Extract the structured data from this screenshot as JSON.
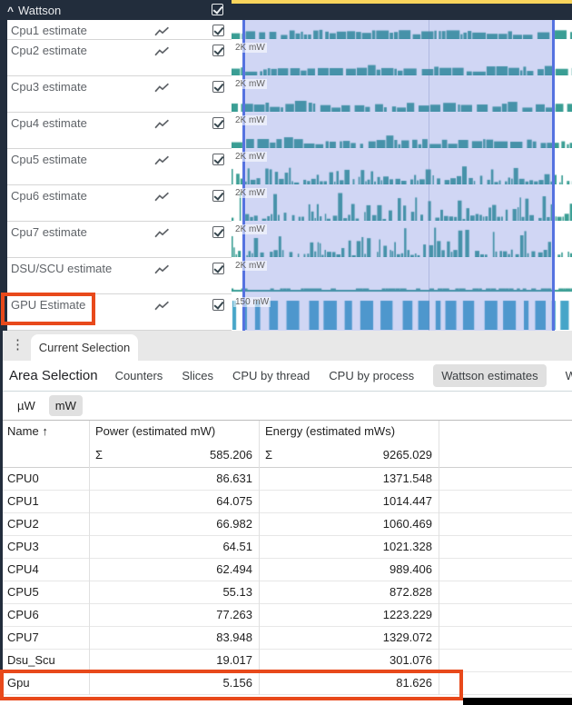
{
  "colors": {
    "header_bg": "#222d3c",
    "yellow_strip": "#f9d45c",
    "counter_bar": "#3a9e94",
    "gpu_bar": "#46a5c8",
    "selection_border": "#5572e0",
    "highlight_red": "#e8491b",
    "active_pill": "#e0e0e0"
  },
  "icons": {
    "collapse_caret": "^",
    "menu_dots": "⋮",
    "sort_asc": "↑",
    "sum": "Σ",
    "chart_line": "line-chart-icon",
    "checkbox_checked": "checked"
  },
  "timeline": {
    "group_header": {
      "label": "Wattson",
      "checked": true
    },
    "tracks": [
      {
        "label": "Cpu1 estimate",
        "scale": "",
        "profile": "dense",
        "clipped": true,
        "checked": true
      },
      {
        "label": "Cpu2 estimate",
        "scale": "2K mW",
        "profile": "dense",
        "clipped": false,
        "checked": true
      },
      {
        "label": "Cpu3 estimate",
        "scale": "2K mW",
        "profile": "dense",
        "clipped": false,
        "checked": true
      },
      {
        "label": "Cpu4 estimate",
        "scale": "2K mW",
        "profile": "dense",
        "clipped": false,
        "checked": true
      },
      {
        "label": "Cpu5 estimate",
        "scale": "2K mW",
        "profile": "medium",
        "clipped": false,
        "checked": true
      },
      {
        "label": "Cpu6 estimate",
        "scale": "2K mW",
        "profile": "spiky",
        "clipped": false,
        "checked": true
      },
      {
        "label": "Cpu7 estimate",
        "scale": "2K mW",
        "profile": "spiky",
        "clipped": false,
        "checked": true
      },
      {
        "label": "DSU/SCU estimate",
        "scale": "2K mW",
        "profile": "flat",
        "clipped": false,
        "checked": true
      },
      {
        "label": "GPU Estimate",
        "scale": "150 mW",
        "profile": "blocks",
        "clipped": false,
        "checked": true,
        "highlighted": true
      }
    ]
  },
  "bottom_panel": {
    "tab_bar": {
      "tabs": [
        {
          "label": "Current Selection",
          "active": true
        }
      ]
    },
    "section_title": "Area Selection",
    "view_tabs": [
      {
        "label": "Counters",
        "active": false
      },
      {
        "label": "Slices",
        "active": false
      },
      {
        "label": "CPU by thread",
        "active": false
      },
      {
        "label": "CPU by process",
        "active": false
      },
      {
        "label": "Wattson estimates",
        "active": true
      },
      {
        "label": "Wattson by",
        "active": false
      }
    ],
    "unit_toggle": [
      {
        "label": "µW",
        "active": false
      },
      {
        "label": "mW",
        "active": true
      }
    ]
  },
  "table": {
    "columns": [
      {
        "label": "Name",
        "sorted": "asc"
      },
      {
        "label": "Power (estimated mW)",
        "sum": "585.206"
      },
      {
        "label": "Energy (estimated mWs)",
        "sum": "9265.029"
      }
    ],
    "rows": [
      {
        "name": "CPU0",
        "power": "86.631",
        "energy": "1371.548"
      },
      {
        "name": "CPU1",
        "power": "64.075",
        "energy": "1014.447"
      },
      {
        "name": "CPU2",
        "power": "66.982",
        "energy": "1060.469"
      },
      {
        "name": "CPU3",
        "power": "64.51",
        "energy": "1021.328"
      },
      {
        "name": "CPU4",
        "power": "62.494",
        "energy": "989.406"
      },
      {
        "name": "CPU5",
        "power": "55.13",
        "energy": "872.828"
      },
      {
        "name": "CPU6",
        "power": "77.263",
        "energy": "1223.229"
      },
      {
        "name": "CPU7",
        "power": "83.948",
        "energy": "1329.072"
      },
      {
        "name": "Dsu_Scu",
        "power": "19.017",
        "energy": "301.076"
      },
      {
        "name": "Gpu",
        "power": "5.156",
        "energy": "81.626",
        "highlighted": true
      }
    ]
  }
}
